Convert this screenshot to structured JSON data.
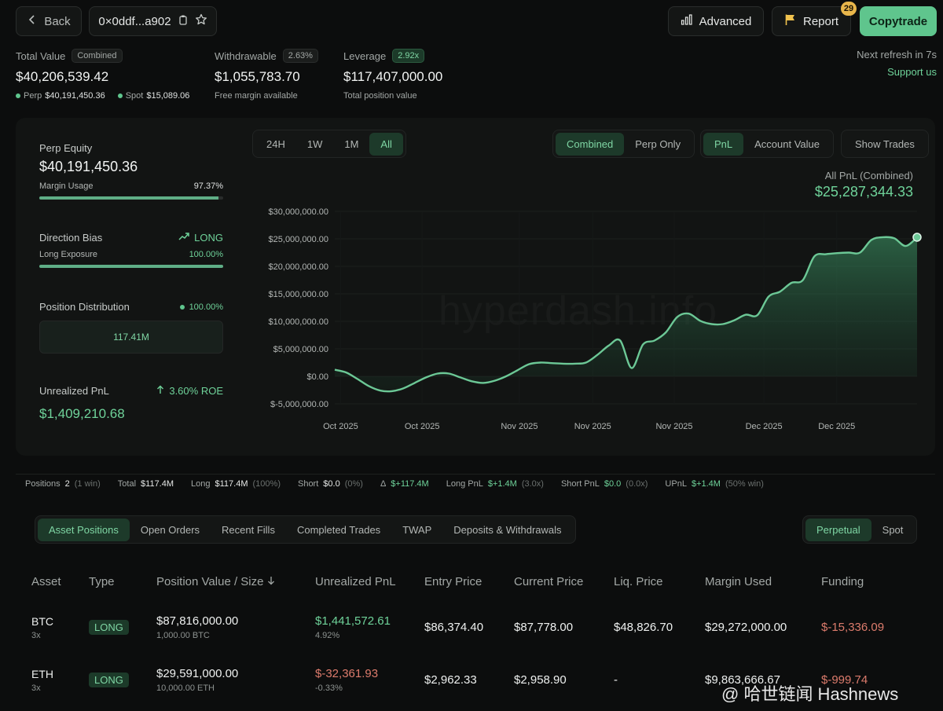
{
  "header": {
    "back_label": "Back",
    "address": "0×0ddf...a902",
    "advanced_label": "Advanced",
    "report_label": "Report",
    "report_badge": "29",
    "copytrade_label": "Copytrade"
  },
  "stats": {
    "total_value": {
      "label": "Total Value",
      "pill": "Combined",
      "value": "$40,206,539.42",
      "perp_label": "Perp",
      "perp_value": "$40,191,450.36",
      "spot_label": "Spot",
      "spot_value": "$15,089.06"
    },
    "withdrawable": {
      "label": "Withdrawable",
      "pill": "2.63%",
      "value": "$1,055,783.70",
      "sub": "Free margin available"
    },
    "leverage": {
      "label": "Leverage",
      "pill": "2.92x",
      "value": "$117,407,000.00",
      "sub": "Total position value"
    },
    "refresh": "Next refresh in 7s",
    "support": "Support us"
  },
  "left": {
    "perp_equity_label": "Perp Equity",
    "perp_equity_value": "$40,191,450.36",
    "margin_usage_label": "Margin Usage",
    "margin_usage_value": "97.37%",
    "margin_usage_fraction": 0.9737,
    "direction_label": "Direction Bias",
    "direction_value": "LONG",
    "long_exposure_label": "Long Exposure",
    "long_exposure_value": "100.00%",
    "long_exposure_fraction": 1.0,
    "distribution_label": "Position Distribution",
    "distribution_value": "100.00%",
    "distribution_box": "117.41M",
    "unrealized_label": "Unrealized PnL",
    "unrealized_roe": "3.60% ROE",
    "unrealized_value": "$1,409,210.68"
  },
  "chart_controls": {
    "ranges": [
      "24H",
      "1W",
      "1M",
      "All"
    ],
    "active_range": "All",
    "modes": [
      "Combined",
      "Perp Only"
    ],
    "active_mode": "Combined",
    "metrics": [
      "PnL",
      "Account Value"
    ],
    "active_metric": "PnL",
    "show_trades": "Show Trades",
    "summary_label": "All PnL (Combined)",
    "summary_value": "$25,287,344.33",
    "watermark": "hyperdash.info"
  },
  "chart_data": {
    "type": "area",
    "title": "",
    "xlabel": "",
    "ylabel": "",
    "ylim": [
      -5000000,
      30000000
    ],
    "yticks": [
      "$30,000,000.00",
      "$25,000,000.00",
      "$20,000,000.00",
      "$15,000,000.00",
      "$10,000,000.00",
      "$5,000,000.00",
      "$0.00",
      "$-5,000,000.00"
    ],
    "ytick_values": [
      30000000,
      25000000,
      20000000,
      15000000,
      10000000,
      5000000,
      0,
      -5000000
    ],
    "xticks": [
      "Oct 2025",
      "Oct 2025",
      "Nov 2025",
      "Nov 2025",
      "Nov 2025",
      "Dec 2025",
      "Dec 2025"
    ],
    "grid": true,
    "series": [
      {
        "values": [
          1200000,
          700000,
          -500000,
          -1800000,
          -2600000,
          -2700000,
          -2200000,
          -1200000,
          -200000,
          500000,
          500000,
          -200000,
          -900000,
          -1200000,
          -800000,
          0,
          1100000,
          2200000,
          2500000,
          2400000,
          2300000,
          2300000,
          2500000,
          3900000,
          5600000,
          6500000,
          1500000,
          5800000,
          6500000,
          8000000,
          10800000,
          11400000,
          10100000,
          9500000,
          9500000,
          10200000,
          11200000,
          11100000,
          14500000,
          15400000,
          17000000,
          17500000,
          21800000,
          22200000,
          22400000,
          22500000,
          22500000,
          24800000,
          25300000,
          25100000,
          23700000,
          25287344
        ]
      }
    ]
  },
  "summary": {
    "positions_label": "Positions",
    "positions_value": "2",
    "positions_note": "(1 win)",
    "total_label": "Total",
    "total_value": "$117.4M",
    "long_label": "Long",
    "long_value": "$117.4M",
    "long_note": "(100%)",
    "short_label": "Short",
    "short_value": "$0.0",
    "short_note": "(0%)",
    "delta_label": "Δ",
    "delta_value": "$+117.4M",
    "long_pnl_label": "Long PnL",
    "long_pnl_value": "$+1.4M",
    "long_pnl_note": "(3.0x)",
    "short_pnl_label": "Short PnL",
    "short_pnl_value": "$0.0",
    "short_pnl_note": "(0.0x)",
    "upnl_label": "UPnL",
    "upnl_value": "$+1.4M",
    "upnl_note": "(50% win)"
  },
  "tabs": [
    "Asset Positions",
    "Open Orders",
    "Recent Fills",
    "Completed Trades",
    "TWAP",
    "Deposits & Withdrawals"
  ],
  "active_tab": "Asset Positions",
  "market_tabs": [
    "Perpetual",
    "Spot"
  ],
  "active_market": "Perpetual",
  "table": {
    "columns": [
      "Asset",
      "Type",
      "Position Value / Size",
      "Unrealized PnL",
      "Entry Price",
      "Current Price",
      "Liq. Price",
      "Margin Used",
      "Funding"
    ],
    "rows": [
      {
        "asset": "BTC",
        "lev": "3x",
        "type": "LONG",
        "value": "$87,816,000.00",
        "size": "1,000.00 BTC",
        "pnl": "$1,441,572.61",
        "pnl_pct": "4.92%",
        "entry": "$86,374.40",
        "current": "$87,778.00",
        "liq": "$48,826.70",
        "margin": "$29,272,000.00",
        "funding": "$-15,336.09"
      },
      {
        "asset": "ETH",
        "lev": "3x",
        "type": "LONG",
        "value": "$29,591,000.00",
        "size": "10,000.00 ETH",
        "pnl": "$-32,361.93",
        "pnl_pct": "-0.33%",
        "entry": "$2,962.33",
        "current": "$2,958.90",
        "liq": "-",
        "margin": "$9,863,666.67",
        "funding": "$-999.74"
      }
    ]
  },
  "footer_watermark": "@ 哈世链闻 Hashnews",
  "colors": {
    "accent": "#5fc58d",
    "negative": "#dc7b6c",
    "background": "#0c0d0d"
  }
}
